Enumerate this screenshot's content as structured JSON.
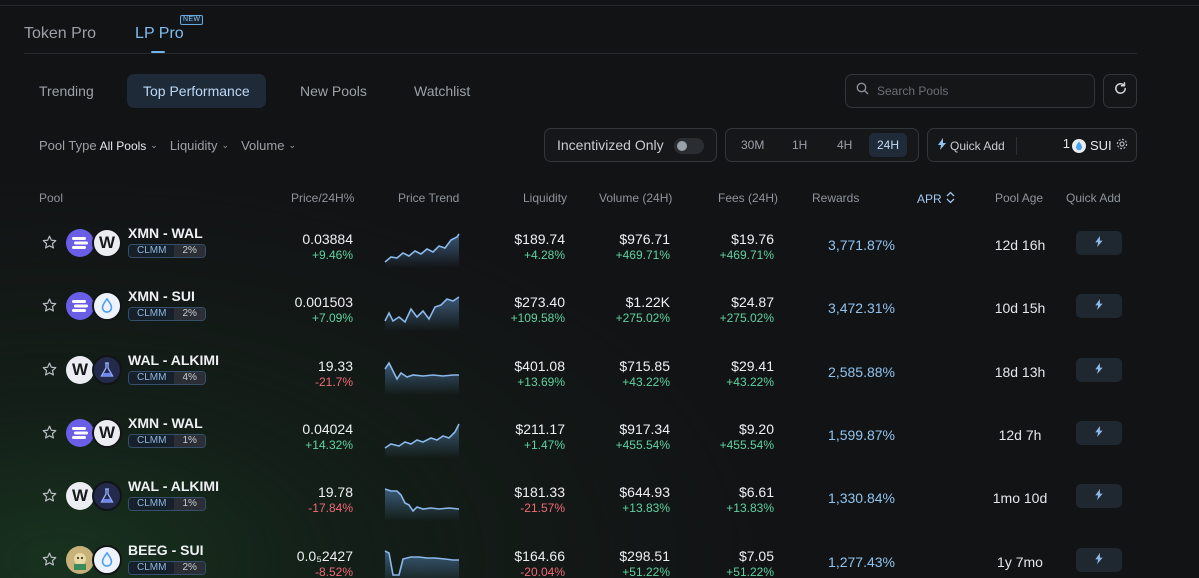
{
  "product_tabs": [
    {
      "label": "Token Pro"
    },
    {
      "label": "LP Pro",
      "badge": "NEW"
    }
  ],
  "sub_tabs": [
    {
      "label": "Trending"
    },
    {
      "label": "Top Performance"
    },
    {
      "label": "New Pools"
    },
    {
      "label": "Watchlist"
    }
  ],
  "search": {
    "placeholder": "Search Pools"
  },
  "filters": {
    "pool_type_label": "Pool Type",
    "pool_type_value": "All Pools",
    "liquidity_label": "Liquidity",
    "volume_label": "Volume"
  },
  "incentivized": {
    "label": "Incentivized Only",
    "checked": false
  },
  "timeframes": [
    "30M",
    "1H",
    "4H",
    "24H"
  ],
  "selected_timeframe": "24H",
  "quick_add": {
    "label": "Quick Add",
    "amount": "1",
    "token": "SUI"
  },
  "table": {
    "headers": {
      "pool": "Pool",
      "price": "Price/24H%",
      "trend": "Price Trend",
      "liquidity": "Liquidity",
      "volume": "Volume (24H)",
      "fees": "Fees (24H)",
      "rewards": "Rewards",
      "apr": "APR",
      "age": "Pool Age",
      "quick_add": "Quick Add"
    },
    "rows": [
      {
        "name": "XMN - WAL",
        "type": "CLMM",
        "fee": "2%",
        "price": "0.03884",
        "price_chg": "+9.46%",
        "liq": "$189.74",
        "liq_chg": "+4.28%",
        "vol": "$976.71",
        "vol_chg": "+469.71%",
        "fees": "$19.76",
        "fees_chg": "+469.71%",
        "apr": "3,771.87%",
        "age": "12d 16h"
      },
      {
        "name": "XMN - SUI",
        "type": "CLMM",
        "fee": "2%",
        "price": "0.001503",
        "price_chg": "+7.09%",
        "liq": "$273.40",
        "liq_chg": "+109.58%",
        "vol": "$1.22K",
        "vol_chg": "+275.02%",
        "fees": "$24.87",
        "fees_chg": "+275.02%",
        "apr": "3,472.31%",
        "age": "10d 15h"
      },
      {
        "name": "WAL - ALKIMI",
        "type": "CLMM",
        "fee": "4%",
        "price": "19.33",
        "price_chg": "-21.7%",
        "liq": "$401.08",
        "liq_chg": "+13.69%",
        "vol": "$715.85",
        "vol_chg": "+43.22%",
        "fees": "$29.41",
        "fees_chg": "+43.22%",
        "apr": "2,585.88%",
        "age": "18d 13h"
      },
      {
        "name": "XMN - WAL",
        "type": "CLMM",
        "fee": "1%",
        "price": "0.04024",
        "price_chg": "+14.32%",
        "liq": "$211.17",
        "liq_chg": "+1.47%",
        "vol": "$917.34",
        "vol_chg": "+455.54%",
        "fees": "$9.20",
        "fees_chg": "+455.54%",
        "apr": "1,599.87%",
        "age": "12d 7h"
      },
      {
        "name": "WAL - ALKIMI",
        "type": "CLMM",
        "fee": "1%",
        "price": "19.78",
        "price_chg": "-17.84%",
        "liq": "$181.33",
        "liq_chg": "-21.57%",
        "vol": "$644.93",
        "vol_chg": "+13.83%",
        "fees": "$6.61",
        "fees_chg": "+13.83%",
        "apr": "1,330.84%",
        "age": "1mo 10d"
      },
      {
        "name": "BEEG - SUI",
        "type": "CLMM",
        "fee": "2%",
        "price": "0.0₅2427",
        "price_chg": "-8.52%",
        "liq": "$164.66",
        "liq_chg": "-20.04%",
        "vol": "$298.51",
        "vol_chg": "+51.22%",
        "fees": "$7.05",
        "fees_chg": "+51.22%",
        "apr": "1,277.43%",
        "age": "1y 7mo"
      }
    ]
  },
  "colors": {
    "accent": "#7fbdf0",
    "positive": "#5fd3a0",
    "negative": "#f06a76",
    "apr": "#8fc4f0"
  },
  "icons": [
    "star-icon",
    "search-icon",
    "refresh-icon",
    "lightning-icon",
    "settings-icon",
    "sort-icon",
    "chevron-down-icon"
  ]
}
